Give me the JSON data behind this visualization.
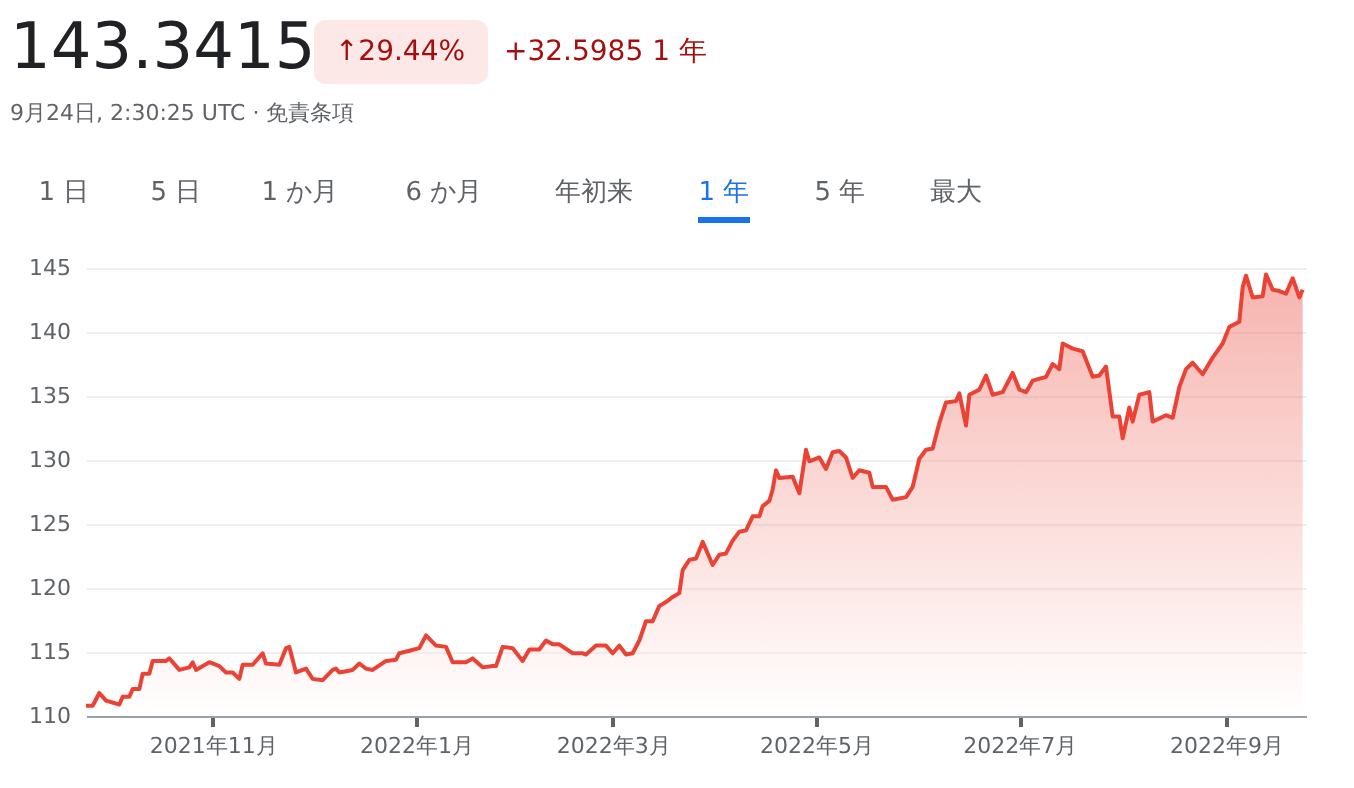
{
  "chart_data": {
    "type": "area",
    "title": "143.3415",
    "subtitle": "9月24日, 2:30:25 UTC · 免責条項",
    "annotations": [
      "↑29.44%",
      "+32.5985 1 年",
      "1 日",
      "5 日",
      "1 か月",
      "6 か月",
      "年初来",
      "1 年",
      "5 年",
      "最大"
    ],
    "xlim": [
      "2021-09-24",
      "2022-09-25"
    ],
    "xticks": [
      {
        "value": "2021-11-01",
        "label": "2021年11月"
      },
      {
        "value": "2022-01-01",
        "label": "2022年1月"
      },
      {
        "value": "2022-03-01",
        "label": "2022年3月"
      },
      {
        "value": "2022-05-01",
        "label": "2022年5月"
      },
      {
        "value": "2022-07-01",
        "label": "2022年7月"
      },
      {
        "value": "2022-09-01",
        "label": "2022年9月"
      }
    ],
    "ylim": [
      110,
      145
    ],
    "yticks": [
      110,
      115,
      120,
      125,
      130,
      135,
      140,
      145
    ],
    "grid": "y",
    "series": [
      {
        "color": "#ea4335",
        "x": [
          "2021-09-24",
          "2021-09-26",
          "2021-09-28",
          "2021-09-30",
          "2021-10-04",
          "2021-10-05",
          "2021-10-07",
          "2021-10-08",
          "2021-10-10",
          "2021-10-11",
          "2021-10-13",
          "2021-10-14",
          "2021-10-18",
          "2021-10-19",
          "2021-10-22",
          "2021-10-25",
          "2021-10-26",
          "2021-10-27",
          "2021-10-31",
          "2021-11-03",
          "2021-11-05",
          "2021-11-07",
          "2021-11-09",
          "2021-11-10",
          "2021-11-13",
          "2021-11-16",
          "2021-11-17",
          "2021-11-21",
          "2021-11-23",
          "2021-11-24",
          "2021-11-26",
          "2021-11-29",
          "2021-12-01",
          "2021-12-04",
          "2021-12-07",
          "2021-12-08",
          "2021-12-09",
          "2021-12-13",
          "2021-12-15",
          "2021-12-17",
          "2021-12-19",
          "2021-12-23",
          "2021-12-26",
          "2021-12-27",
          "2021-12-30",
          "2022-01-02",
          "2022-01-04",
          "2022-01-07",
          "2022-01-10",
          "2022-01-12",
          "2022-01-16",
          "2022-01-18",
          "2022-01-21",
          "2022-01-24",
          "2022-01-25",
          "2022-01-27",
          "2022-01-30",
          "2022-02-02",
          "2022-02-04",
          "2022-02-07",
          "2022-02-09",
          "2022-02-11",
          "2022-02-13",
          "2022-02-17",
          "2022-02-20",
          "2022-02-21",
          "2022-02-24",
          "2022-02-27",
          "2022-03-01",
          "2022-03-03",
          "2022-03-05",
          "2022-03-07",
          "2022-03-09",
          "2022-03-11",
          "2022-03-13",
          "2022-03-15",
          "2022-03-17",
          "2022-03-19",
          "2022-03-21",
          "2022-03-22",
          "2022-03-24",
          "2022-03-26",
          "2022-03-28",
          "2022-03-31",
          "2022-04-02",
          "2022-04-04",
          "2022-04-06",
          "2022-04-08",
          "2022-04-10",
          "2022-04-12",
          "2022-04-14",
          "2022-04-15",
          "2022-04-17",
          "2022-04-18",
          "2022-04-19",
          "2022-04-20",
          "2022-04-24",
          "2022-04-26",
          "2022-04-28",
          "2022-04-29",
          "2022-05-02",
          "2022-05-04",
          "2022-05-06",
          "2022-05-08",
          "2022-05-10",
          "2022-05-12",
          "2022-05-14",
          "2022-05-17",
          "2022-05-18",
          "2022-05-22",
          "2022-05-24",
          "2022-05-28",
          "2022-05-30",
          "2022-06-01",
          "2022-06-03",
          "2022-06-05",
          "2022-06-07",
          "2022-06-09",
          "2022-06-12",
          "2022-06-13",
          "2022-06-15",
          "2022-06-16",
          "2022-06-19",
          "2022-06-21",
          "2022-06-23",
          "2022-06-26",
          "2022-06-29",
          "2022-07-01",
          "2022-07-03",
          "2022-07-05",
          "2022-07-09",
          "2022-07-11",
          "2022-07-13",
          "2022-07-14",
          "2022-07-17",
          "2022-07-20",
          "2022-07-23",
          "2022-07-25",
          "2022-07-27",
          "2022-07-29",
          "2022-07-31",
          "2022-08-01",
          "2022-08-03",
          "2022-08-04",
          "2022-08-06",
          "2022-08-09",
          "2022-08-10",
          "2022-08-14",
          "2022-08-16",
          "2022-08-18",
          "2022-08-20",
          "2022-08-22",
          "2022-08-25",
          "2022-08-28",
          "2022-08-31",
          "2022-09-02",
          "2022-09-05",
          "2022-09-06",
          "2022-09-07",
          "2022-09-09",
          "2022-09-12",
          "2022-09-13",
          "2022-09-15",
          "2022-09-17",
          "2022-09-19",
          "2022-09-21",
          "2022-09-23",
          "2022-09-24"
        ],
        "values": [
          110.8,
          110.8,
          111.8,
          111.2,
          110.9,
          111.5,
          111.5,
          112.1,
          112.1,
          113.3,
          113.3,
          114.3,
          114.3,
          114.5,
          113.6,
          113.8,
          114.2,
          113.6,
          114.2,
          113.9,
          113.4,
          113.4,
          112.9,
          114.0,
          114.0,
          114.9,
          114.1,
          114.0,
          115.3,
          115.4,
          113.4,
          113.7,
          112.9,
          112.8,
          113.6,
          113.7,
          113.4,
          113.6,
          114.1,
          113.7,
          113.6,
          114.3,
          114.4,
          114.9,
          115.1,
          115.3,
          116.3,
          115.5,
          115.4,
          114.2,
          114.2,
          114.5,
          113.8,
          113.9,
          113.9,
          115.4,
          115.3,
          114.3,
          115.2,
          115.2,
          115.9,
          115.6,
          115.6,
          114.9,
          114.9,
          114.8,
          115.5,
          115.5,
          114.9,
          115.5,
          114.8,
          114.9,
          115.9,
          117.4,
          117.4,
          118.6,
          118.9,
          119.3,
          119.6,
          121.4,
          122.2,
          122.3,
          123.6,
          121.8,
          122.6,
          122.7,
          123.7,
          124.4,
          124.5,
          125.6,
          125.6,
          126.4,
          126.8,
          127.7,
          129.2,
          128.6,
          128.7,
          127.4,
          130.8,
          129.9,
          130.2,
          129.3,
          130.6,
          130.7,
          130.2,
          128.6,
          129.2,
          129.0,
          127.9,
          127.9,
          126.9,
          127.1,
          127.9,
          130.1,
          130.8,
          130.9,
          132.9,
          134.5,
          134.6,
          135.2,
          132.7,
          135.1,
          135.5,
          136.6,
          135.1,
          135.3,
          136.8,
          135.5,
          135.3,
          136.2,
          136.5,
          137.5,
          137.1,
          139.1,
          138.7,
          138.5,
          136.5,
          136.6,
          137.3,
          133.4,
          133.4,
          131.7,
          134.1,
          133.0,
          135.1,
          135.3,
          133.0,
          133.5,
          133.3,
          135.7,
          137.1,
          137.6,
          136.7,
          138.0,
          139.1,
          140.4,
          140.8,
          143.5,
          144.4,
          142.7,
          142.8,
          144.5,
          143.3,
          143.2,
          143.0,
          144.2,
          142.7,
          143.3
        ]
      }
    ]
  }
}
